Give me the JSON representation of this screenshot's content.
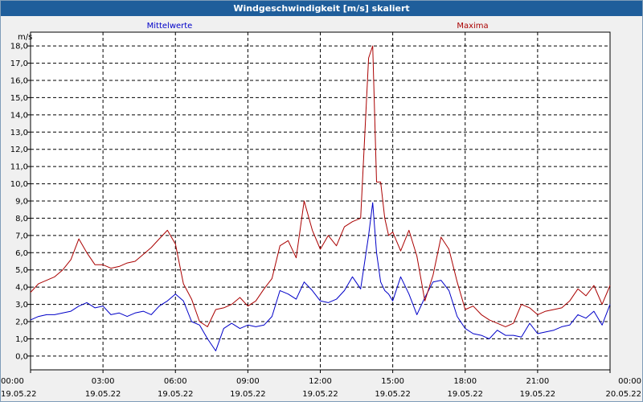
{
  "window": {
    "title": "Windgeschwindigkeit [m/s] skaliert"
  },
  "colors": {
    "titlebar": "#1f5e9b",
    "mean": "#0000c8",
    "max": "#aa0000",
    "grid": "#000000"
  },
  "chart_data": {
    "type": "line",
    "title": "Windgeschwindigkeit [m/s] skaliert",
    "ylabel": "m/s",
    "xlabel": "",
    "ylim": [
      -0.8,
      18.8
    ],
    "yticks": [
      0,
      1,
      2,
      3,
      4,
      5,
      6,
      7,
      8,
      9,
      10,
      11,
      12,
      13,
      14,
      15,
      16,
      17,
      18
    ],
    "ytick_labels": [
      "0,0",
      "1,0",
      "2,0",
      "3,0",
      "4,0",
      "5,0",
      "6,0",
      "7,0",
      "8,0",
      "9,0",
      "10,0",
      "11,0",
      "12,0",
      "13,0",
      "14,0",
      "15,0",
      "16,0",
      "17,0",
      "18,0"
    ],
    "xlim": [
      0,
      24
    ],
    "xticks": [
      0,
      3,
      6,
      9,
      12,
      15,
      18,
      21,
      24
    ],
    "xtick_labels": [
      [
        "00:00",
        "19.05.22"
      ],
      [
        "03:00",
        "19.05.22"
      ],
      [
        "06:00",
        "19.05.22"
      ],
      [
        "09:00",
        "19.05.22"
      ],
      [
        "12:00",
        "19.05.22"
      ],
      [
        "15:00",
        "19.05.22"
      ],
      [
        "18:00",
        "19.05.22"
      ],
      [
        "21:00",
        "19.05.22"
      ],
      [
        "00:00",
        "20.05.22"
      ]
    ],
    "grid": true,
    "legend": "top",
    "series": [
      {
        "name": "Mittelwerte",
        "color": "#0000c8",
        "x": [
          0,
          0.33,
          0.67,
          1,
          1.33,
          1.67,
          2,
          2.33,
          2.67,
          3,
          3.33,
          3.67,
          4,
          4.33,
          4.67,
          5,
          5.33,
          5.67,
          6,
          6.33,
          6.67,
          7,
          7.33,
          7.67,
          8,
          8.33,
          8.67,
          9,
          9.33,
          9.67,
          10,
          10.33,
          10.67,
          11,
          11.33,
          11.67,
          12,
          12.33,
          12.67,
          13,
          13.33,
          13.67,
          14,
          14.17,
          14.33,
          14.5,
          14.67,
          14.83,
          15,
          15.33,
          15.67,
          16,
          16.33,
          16.67,
          17,
          17.33,
          17.67,
          18,
          18.33,
          18.67,
          19,
          19.33,
          19.67,
          20,
          20.33,
          20.67,
          21,
          21.33,
          21.67,
          22,
          22.33,
          22.67,
          23,
          23.33,
          23.67,
          24
        ],
        "values": [
          2.1,
          2.3,
          2.4,
          2.4,
          2.5,
          2.6,
          2.9,
          3.1,
          2.8,
          2.9,
          2.4,
          2.5,
          2.3,
          2.5,
          2.6,
          2.4,
          2.9,
          3.2,
          3.6,
          3.2,
          2.0,
          1.8,
          1.0,
          0.3,
          1.6,
          1.9,
          1.6,
          1.8,
          1.7,
          1.8,
          2.3,
          3.8,
          3.6,
          3.3,
          4.3,
          3.8,
          3.2,
          3.1,
          3.3,
          3.8,
          4.6,
          3.9,
          7.0,
          8.9,
          6.0,
          4.3,
          3.8,
          3.6,
          3.2,
          4.6,
          3.6,
          2.4,
          3.4,
          4.3,
          4.4,
          3.8,
          2.3,
          1.6,
          1.3,
          1.2,
          1.0,
          1.5,
          1.2,
          1.2,
          1.1,
          1.9,
          1.3,
          1.4,
          1.5,
          1.7,
          1.8,
          2.4,
          2.2,
          2.6,
          1.8,
          3.0
        ]
      },
      {
        "name": "Maxima",
        "color": "#aa0000",
        "x": [
          0,
          0.33,
          0.67,
          1,
          1.33,
          1.67,
          2,
          2.33,
          2.67,
          3,
          3.33,
          3.67,
          4,
          4.33,
          4.67,
          5,
          5.33,
          5.67,
          6,
          6.33,
          6.67,
          7,
          7.33,
          7.67,
          8,
          8.33,
          8.67,
          9,
          9.33,
          9.67,
          10,
          10.33,
          10.67,
          11,
          11.33,
          11.67,
          12,
          12.33,
          12.67,
          13,
          13.33,
          13.67,
          14,
          14.17,
          14.33,
          14.5,
          14.67,
          14.83,
          15,
          15.33,
          15.67,
          16,
          16.33,
          16.67,
          17,
          17.33,
          17.67,
          18,
          18.33,
          18.67,
          19,
          19.33,
          19.67,
          20,
          20.33,
          20.67,
          21,
          21.33,
          21.67,
          22,
          22.33,
          22.67,
          23,
          23.33,
          23.67,
          24
        ],
        "values": [
          3.7,
          4.2,
          4.4,
          4.6,
          5.0,
          5.6,
          6.8,
          6.0,
          5.3,
          5.3,
          5.1,
          5.2,
          5.4,
          5.5,
          5.9,
          6.3,
          6.8,
          7.3,
          6.5,
          4.2,
          3.3,
          2.0,
          1.7,
          2.7,
          2.8,
          3.0,
          3.4,
          2.9,
          3.2,
          3.9,
          4.5,
          6.4,
          6.7,
          5.7,
          9.0,
          7.3,
          6.2,
          7.0,
          6.4,
          7.5,
          7.8,
          8.0,
          17.3,
          18.0,
          10.1,
          10.1,
          8.0,
          7.0,
          7.2,
          6.1,
          7.3,
          5.8,
          3.2,
          4.7,
          6.9,
          6.2,
          4.3,
          2.7,
          2.9,
          2.4,
          2.1,
          1.9,
          1.7,
          1.9,
          3.0,
          2.8,
          2.4,
          2.6,
          2.7,
          2.8,
          3.2,
          3.9,
          3.5,
          4.1,
          3.0,
          4.1
        ]
      }
    ]
  }
}
